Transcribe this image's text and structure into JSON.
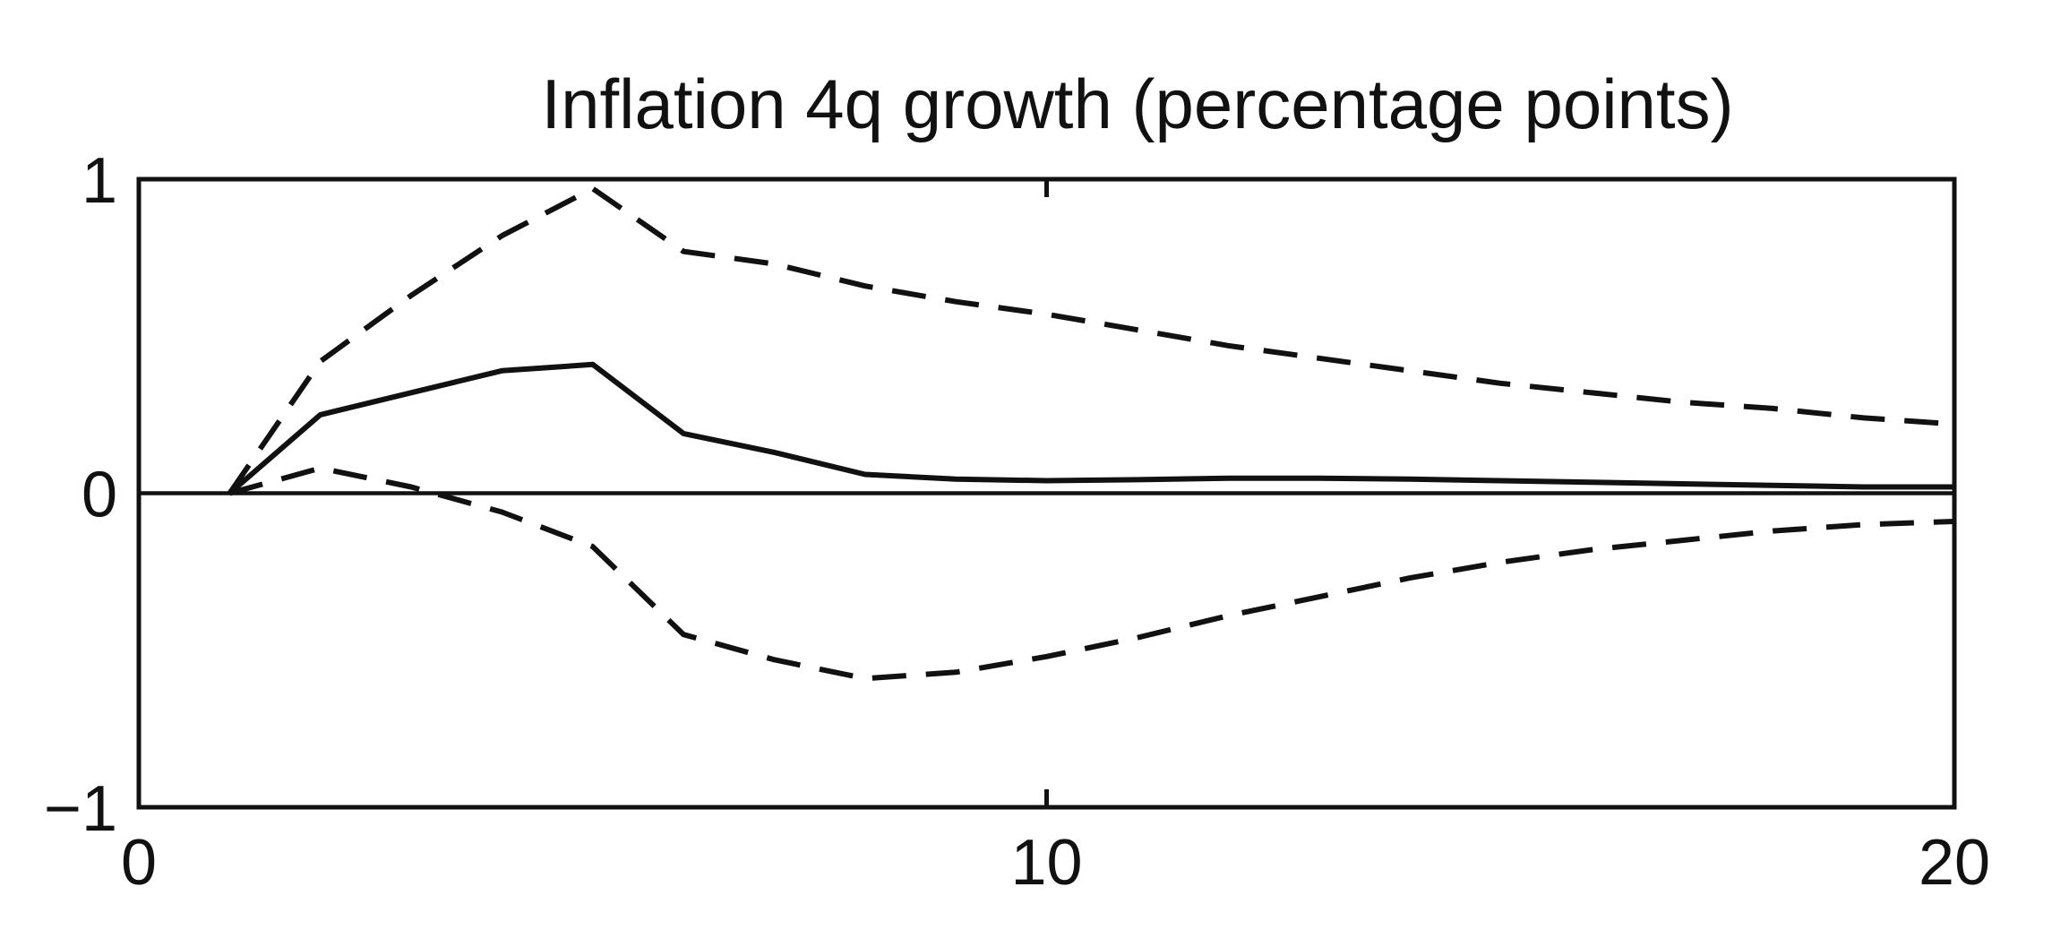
{
  "chart_data": {
    "type": "line",
    "title": "Inflation 4q growth (percentage points)",
    "xlabel": "",
    "ylabel": "",
    "xlim": [
      0,
      20
    ],
    "ylim": [
      -1,
      1
    ],
    "x_ticks": [
      0,
      10,
      20
    ],
    "x_tick_labels": [
      "0",
      "10",
      "20"
    ],
    "y_ticks": [
      -1,
      0,
      1
    ],
    "y_tick_labels": [
      "−1",
      "0",
      "1"
    ],
    "grid": false,
    "legend": "none",
    "zero_line": true,
    "line_color": "#111111",
    "series": [
      {
        "style": "solid",
        "x": [
          1,
          2,
          3,
          4,
          5,
          6,
          7,
          8,
          9,
          10,
          11,
          12,
          13,
          14,
          15,
          16,
          17,
          18,
          19,
          20
        ],
        "values": [
          0.0,
          0.25,
          0.32,
          0.39,
          0.41,
          0.19,
          0.13,
          0.06,
          0.045,
          0.04,
          0.043,
          0.048,
          0.048,
          0.045,
          0.04,
          0.035,
          0.03,
          0.025,
          0.02,
          0.02
        ]
      },
      {
        "style": "dashed",
        "x": [
          1,
          2,
          3,
          4,
          5,
          6,
          7,
          8,
          9,
          10,
          11,
          12,
          13,
          14,
          15,
          16,
          17,
          18,
          19,
          20
        ],
        "values": [
          0.0,
          0.42,
          0.63,
          0.82,
          0.97,
          0.77,
          0.73,
          0.66,
          0.61,
          0.57,
          0.52,
          0.47,
          0.43,
          0.39,
          0.35,
          0.32,
          0.29,
          0.27,
          0.24,
          0.22
        ]
      },
      {
        "style": "dashed",
        "x": [
          1,
          2,
          3,
          4,
          5,
          6,
          7,
          8,
          9,
          10,
          11,
          12,
          13,
          14,
          15,
          16,
          17,
          18,
          19,
          20
        ],
        "values": [
          0.0,
          0.08,
          0.02,
          -0.06,
          -0.17,
          -0.45,
          -0.53,
          -0.59,
          -0.57,
          -0.52,
          -0.46,
          -0.39,
          -0.33,
          -0.27,
          -0.22,
          -0.18,
          -0.15,
          -0.12,
          -0.1,
          -0.09
        ]
      }
    ]
  }
}
